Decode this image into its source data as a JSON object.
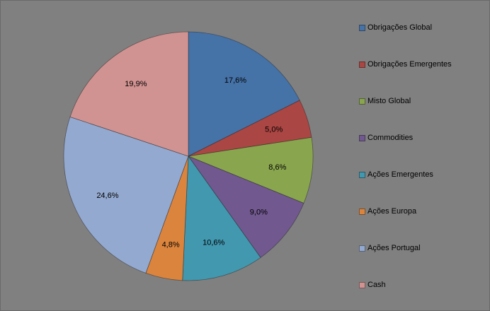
{
  "chart_data": {
    "type": "pie",
    "legend_position": "right",
    "slices": [
      {
        "label": "Obrigações Global",
        "value": 17.6,
        "display": "17,6%",
        "color": "#4572a7"
      },
      {
        "label": "Obrigações Emergentes",
        "value": 5.0,
        "display": "5,0%",
        "color": "#aa4643"
      },
      {
        "label": "Misto Global",
        "value": 8.6,
        "display": "8,6%",
        "color": "#89a54e"
      },
      {
        "label": "Commodities",
        "value": 9.0,
        "display": "9,0%",
        "color": "#71588f"
      },
      {
        "label": "Ações Emergentes",
        "value": 10.6,
        "display": "10,6%",
        "color": "#4198af"
      },
      {
        "label": "Ações Europa",
        "value": 4.8,
        "display": "4,8%",
        "color": "#db843d"
      },
      {
        "label": "Ações Portugal",
        "value": 24.6,
        "display": "24,6%",
        "color": "#93a9cf"
      },
      {
        "label": "Cash",
        "value": 19.9,
        "display": "19,9%",
        "color": "#d19392"
      }
    ]
  }
}
